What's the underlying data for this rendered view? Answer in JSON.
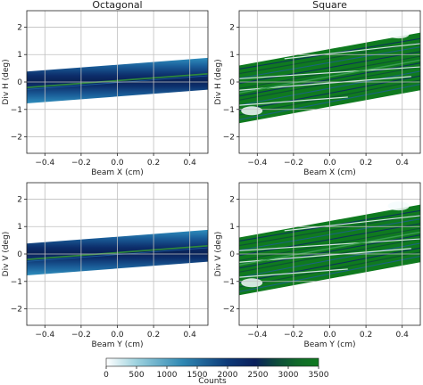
{
  "chart_data": [
    {
      "type": "heatmap",
      "panel": "octagonal-horizontal",
      "title": "Octagonal",
      "xlabel": "Beam X (cm)",
      "ylabel": "Div H (deg)",
      "xlim": [
        -0.5,
        0.5
      ],
      "ylim": [
        -2.6,
        2.6
      ],
      "xticks": [
        -0.4,
        -0.2,
        0.0,
        0.2,
        0.4
      ],
      "xtick_labels": [
        "−0.4",
        "−0.2",
        "0.0",
        "0.2",
        "0.4"
      ],
      "yticks": [
        -2,
        -1,
        0,
        1,
        2
      ],
      "ytick_labels": [
        "−2",
        "−1",
        "0",
        "1",
        "2"
      ],
      "grid": true,
      "band_center_at_xlim": [
        -0.2,
        0.3
      ],
      "band_halfwidth": 0.58,
      "pattern": "smooth band"
    },
    {
      "type": "heatmap",
      "panel": "square-horizontal",
      "title": "Square",
      "xlabel": "Beam X (cm)",
      "ylabel": "Div H (deg)",
      "xlim": [
        -0.5,
        0.5
      ],
      "ylim": [
        -2.6,
        2.6
      ],
      "xticks": [
        -0.4,
        -0.2,
        0.0,
        0.2,
        0.4
      ],
      "xtick_labels": [
        "−0.4",
        "−0.2",
        "0.0",
        "0.2",
        "0.4"
      ],
      "yticks": [
        -2,
        -1,
        0,
        1,
        2
      ],
      "ytick_labels": [
        "−2",
        "−1",
        "0",
        "1",
        "2"
      ],
      "grid": true,
      "band_center_at_xlim": [
        -0.45,
        0.75
      ],
      "band_halfwidth": 1.05,
      "pattern": "saturated band with striations"
    },
    {
      "type": "heatmap",
      "panel": "octagonal-vertical",
      "title": "",
      "xlabel": "Beam Y (cm)",
      "ylabel": "Div V (deg)",
      "xlim": [
        -0.5,
        0.5
      ],
      "ylim": [
        -2.6,
        2.6
      ],
      "xticks": [
        -0.4,
        -0.2,
        0.0,
        0.2,
        0.4
      ],
      "xtick_labels": [
        "−0.4",
        "−0.2",
        "0.0",
        "0.2",
        "0.4"
      ],
      "yticks": [
        -2,
        -1,
        0,
        1,
        2
      ],
      "ytick_labels": [
        "−2",
        "−1",
        "0",
        "1",
        "2"
      ],
      "grid": true,
      "band_center_at_xlim": [
        -0.2,
        0.3
      ],
      "band_halfwidth": 0.58,
      "pattern": "smooth band"
    },
    {
      "type": "heatmap",
      "panel": "square-vertical",
      "title": "",
      "xlabel": "Beam Y (cm)",
      "ylabel": "Div V (deg)",
      "xlim": [
        -0.5,
        0.5
      ],
      "ylim": [
        -2.6,
        2.6
      ],
      "xticks": [
        -0.4,
        -0.2,
        0.0,
        0.2,
        0.4
      ],
      "xtick_labels": [
        "−0.4",
        "−0.2",
        "0.0",
        "0.2",
        "0.4"
      ],
      "yticks": [
        -2,
        -1,
        0,
        1,
        2
      ],
      "ytick_labels": [
        "−2",
        "−1",
        "0",
        "1",
        "2"
      ],
      "grid": true,
      "band_center_at_xlim": [
        -0.45,
        0.75
      ],
      "band_halfwidth": 1.05,
      "pattern": "saturated band with striations"
    }
  ],
  "colorbar": {
    "label": "Counts",
    "range": [
      0,
      3500
    ],
    "ticks": [
      0,
      500,
      1000,
      1500,
      2000,
      2500,
      3000,
      3500
    ],
    "tick_labels": [
      "0",
      "500",
      "1000",
      "1500",
      "2000",
      "2500",
      "3000",
      "3500"
    ],
    "colors": [
      "#ffffff",
      "#9fd3df",
      "#2f88b3",
      "#0d3a78",
      "#0a1f5c",
      "#0d4a3c",
      "#10692a",
      "#0f7a1f"
    ]
  }
}
